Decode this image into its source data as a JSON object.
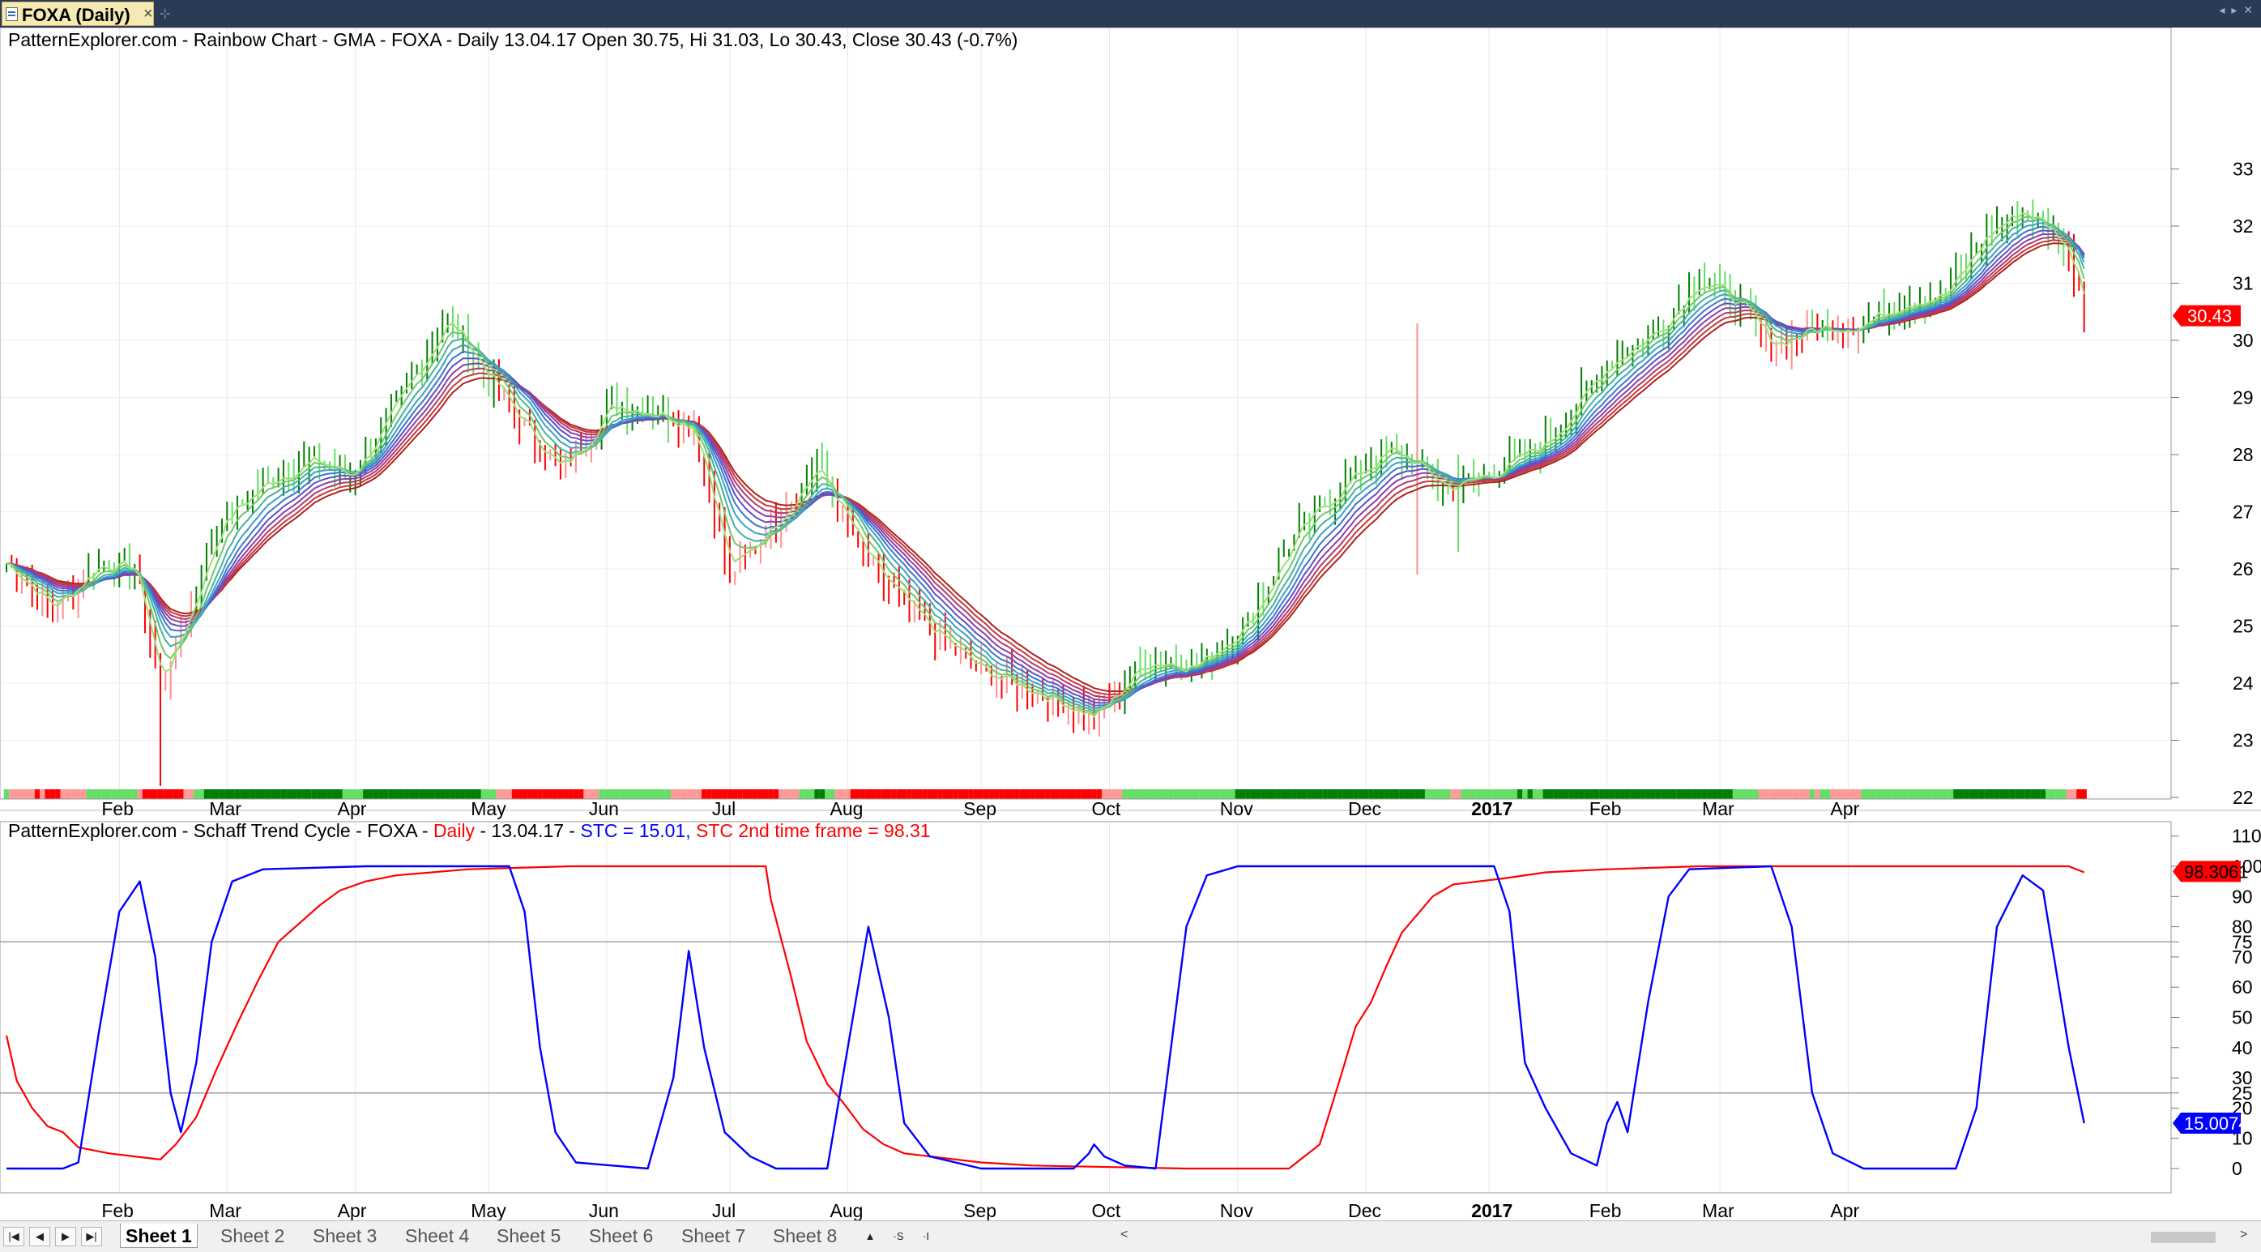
{
  "window": {
    "doc_tab_title": "FOXA (Daily)",
    "close_glyph": "×",
    "pin_glyph": "⊹",
    "controls_glyph": "◂ ▸ ✕",
    "icons": [
      "chart-document-icon",
      "close-icon",
      "pin-icon"
    ]
  },
  "price_pane": {
    "header": "PatternExplorer.com - Rainbow Chart  - GMA - FOXA - Daily 13.04.17 Open 30.75, Hi 31.03, Lo 30.43, Close 30.43 (-0.7%)",
    "y_ticks": [
      "22",
      "23",
      "24",
      "25",
      "26",
      "27",
      "28",
      "29",
      "30",
      "31",
      "32",
      "33"
    ],
    "last_price_label": "30.43",
    "colors": {
      "up_bar": "#008000",
      "down_bar": "#ff0000",
      "light_up": "#66dd66",
      "light_down": "#ff8f8f"
    }
  },
  "stc_pane": {
    "header_black": "PatternExplorer.com - Schaff Trend Cycle - FOXA - ",
    "header_red1": "Daily",
    "header_black2": " - 13.04.17 - ",
    "header_blue": "STC = 15.01, ",
    "header_red2": "STC 2nd time frame = 98.31",
    "y_ticks": [
      "0",
      "10",
      "20",
      "25",
      "30",
      "40",
      "50",
      "60",
      "70",
      "75",
      "80",
      "90",
      "100",
      "110"
    ],
    "stc_label": "15.0074",
    "stc2_label": "98.3061",
    "colors": {
      "stc": "#0000ff",
      "stc2": "#ff0000"
    }
  },
  "x_axis": {
    "labels": [
      "Feb",
      "Mar",
      "Apr",
      "May",
      "Jun",
      "Jul",
      "Aug",
      "Sep",
      "Oct",
      "Nov",
      "Dec",
      "2017",
      "Feb",
      "Mar",
      "Apr"
    ]
  },
  "sheets": [
    "Sheet 1",
    "Sheet 2",
    "Sheet 3",
    "Sheet 4",
    "Sheet 5",
    "Sheet 6",
    "Sheet 7",
    "Sheet 8"
  ],
  "sheet_tools": [
    "▲",
    "·S",
    "·I",
    "<"
  ],
  "nav_glyphs": [
    "|◀",
    "◀",
    "▶",
    "▶|"
  ],
  "scroll_glyphs": [
    "<",
    ">"
  ],
  "chart_data": [
    {
      "type": "candlestick",
      "title": "PatternExplorer.com - Rainbow Chart  - GMA - FOXA - Daily 13.04.17 Open 30.75, Hi 31.03, Lo 30.43, Close 30.43 (-0.7%)",
      "ylim": [
        22,
        33
      ],
      "x_ticks": [
        "Feb",
        "Mar",
        "Apr",
        "May",
        "Jun",
        "Jul",
        "Aug",
        "Sep",
        "Oct",
        "Nov",
        "Dec",
        "2017",
        "Feb",
        "Mar",
        "Apr"
      ],
      "price_anchors": [
        [
          0,
          26.1
        ],
        [
          9,
          25.3
        ],
        [
          18,
          26.1
        ],
        [
          25,
          26.0
        ],
        [
          30,
          23.9
        ],
        [
          34,
          24.9
        ],
        [
          42,
          26.9
        ],
        [
          52,
          27.6
        ],
        [
          60,
          27.9
        ],
        [
          67,
          27.6
        ],
        [
          76,
          28.9
        ],
        [
          86,
          30.4
        ],
        [
          92,
          29.6
        ],
        [
          100,
          28.6
        ],
        [
          108,
          27.7
        ],
        [
          118,
          28.9
        ],
        [
          128,
          28.7
        ],
        [
          134,
          28.5
        ],
        [
          141,
          25.9
        ],
        [
          150,
          26.9
        ],
        [
          158,
          27.8
        ],
        [
          168,
          26.1
        ],
        [
          178,
          25.1
        ],
        [
          190,
          24.2
        ],
        [
          202,
          23.8
        ],
        [
          212,
          23.4
        ],
        [
          222,
          24.4
        ],
        [
          232,
          24.3
        ],
        [
          242,
          25.1
        ],
        [
          252,
          26.7
        ],
        [
          262,
          27.6
        ],
        [
          270,
          28.1
        ],
        [
          281,
          27.4
        ],
        [
          290,
          27.7
        ],
        [
          300,
          28.2
        ],
        [
          312,
          29.6
        ],
        [
          322,
          30.2
        ],
        [
          330,
          31.1
        ],
        [
          338,
          30.6
        ],
        [
          344,
          29.9
        ],
        [
          352,
          30.2
        ],
        [
          362,
          30.3
        ],
        [
          370,
          30.7
        ],
        [
          378,
          30.8
        ],
        [
          386,
          31.9
        ],
        [
          393,
          32.3
        ],
        [
          400,
          31.8
        ],
        [
          406,
          30.7
        ]
      ],
      "last_close": 30.43,
      "rainbow_ma_count": 10
    },
    {
      "type": "line",
      "title": "PatternExplorer.com - Schaff Trend Cycle - FOXA - Daily  - 13.04.17 - STC = 15.01, STC 2nd time frame = 98.31",
      "ylim": [
        -5,
        110
      ],
      "reference_lines": [
        25,
        75
      ],
      "series": [
        {
          "name": "STC",
          "color": "#0000ff",
          "points": [
            [
              0,
              0
            ],
            [
              11,
              0
            ],
            [
              14,
              2
            ],
            [
              18,
              45
            ],
            [
              22,
              85
            ],
            [
              26,
              95
            ],
            [
              29,
              70
            ],
            [
              32,
              25
            ],
            [
              34,
              12
            ],
            [
              37,
              35
            ],
            [
              40,
              75
            ],
            [
              44,
              95
            ],
            [
              50,
              99
            ],
            [
              70,
              100
            ],
            [
              98,
              100
            ],
            [
              101,
              85
            ],
            [
              104,
              40
            ],
            [
              107,
              12
            ],
            [
              111,
              2
            ],
            [
              125,
              0
            ],
            [
              130,
              30
            ],
            [
              133,
              72
            ],
            [
              136,
              40
            ],
            [
              140,
              12
            ],
            [
              145,
              4
            ],
            [
              150,
              0
            ],
            [
              160,
              0
            ],
            [
              164,
              40
            ],
            [
              168,
              80
            ],
            [
              172,
              50
            ],
            [
              175,
              15
            ],
            [
              180,
              4
            ],
            [
              190,
              0
            ],
            [
              208,
              0
            ],
            [
              211,
              5
            ],
            [
              212,
              8
            ],
            [
              214,
              4
            ],
            [
              218,
              1
            ],
            [
              224,
              0
            ],
            [
              227,
              40
            ],
            [
              230,
              80
            ],
            [
              234,
              97
            ],
            [
              240,
              100
            ],
            [
              290,
              100
            ],
            [
              293,
              85
            ],
            [
              296,
              35
            ],
            [
              300,
              20
            ],
            [
              305,
              5
            ],
            [
              310,
              1
            ],
            [
              312,
              15
            ],
            [
              314,
              22
            ],
            [
              316,
              12
            ],
            [
              320,
              55
            ],
            [
              324,
              90
            ],
            [
              328,
              99
            ],
            [
              344,
              100
            ],
            [
              348,
              80
            ],
            [
              352,
              25
            ],
            [
              356,
              5
            ],
            [
              362,
              0
            ],
            [
              380,
              0
            ],
            [
              384,
              20
            ],
            [
              388,
              80
            ],
            [
              393,
              97
            ],
            [
              397,
              92
            ],
            [
              402,
              40
            ],
            [
              405,
              15
            ]
          ]
        },
        {
          "name": "STC 2nd time frame",
          "color": "#ff0000",
          "points": [
            [
              0,
              44
            ],
            [
              2,
              29
            ],
            [
              5,
              20
            ],
            [
              8,
              14
            ],
            [
              11,
              12
            ],
            [
              14,
              7
            ],
            [
              20,
              5
            ],
            [
              25,
              4
            ],
            [
              30,
              3
            ],
            [
              33,
              8
            ],
            [
              37,
              17
            ],
            [
              41,
              33
            ],
            [
              45,
              48
            ],
            [
              49,
              62
            ],
            [
              53,
              75
            ],
            [
              57,
              81
            ],
            [
              61,
              87
            ],
            [
              65,
              92
            ],
            [
              70,
              95
            ],
            [
              76,
              97
            ],
            [
              90,
              99
            ],
            [
              110,
              100
            ],
            [
              148,
              100
            ],
            [
              149,
              89
            ],
            [
              153,
              63
            ],
            [
              156,
              42
            ],
            [
              160,
              28
            ],
            [
              163,
              22
            ],
            [
              167,
              13
            ],
            [
              171,
              8
            ],
            [
              175,
              5
            ],
            [
              190,
              2
            ],
            [
              200,
              1
            ],
            [
              230,
              0
            ],
            [
              250,
              0
            ],
            [
              256,
              8
            ],
            [
              260,
              30
            ],
            [
              263,
              47
            ],
            [
              266,
              55
            ],
            [
              269,
              67
            ],
            [
              272,
              78
            ],
            [
              275,
              84
            ],
            [
              278,
              90
            ],
            [
              282,
              94
            ],
            [
              292,
              96
            ],
            [
              300,
              98
            ],
            [
              312,
              99
            ],
            [
              330,
              100
            ],
            [
              402,
              100
            ],
            [
              405,
              98
            ]
          ]
        }
      ],
      "last_values": {
        "STC": 15.0074,
        "STC 2nd time frame": 98.3061
      }
    }
  ]
}
